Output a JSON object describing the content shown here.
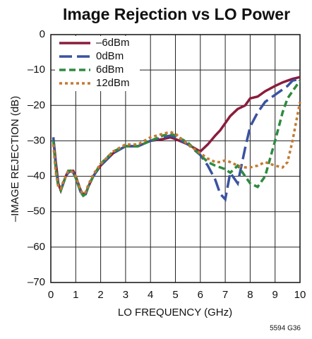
{
  "chart_data": {
    "type": "line",
    "title": "Image Rejection vs LO Power",
    "x_label": "LO FREQUENCY (GHz)",
    "y_label": "–IMAGE REJECTION (dB)",
    "footnote": "5594 G36",
    "x": [
      0.1,
      0.2,
      0.3,
      0.4,
      0.5,
      0.6,
      0.7,
      0.8,
      0.9,
      1.0,
      1.1,
      1.2,
      1.3,
      1.4,
      1.5,
      1.7,
      2.0,
      2.5,
      3.0,
      3.5,
      4.0,
      4.5,
      4.8,
      5.0,
      5.5,
      6.0,
      6.3,
      6.6,
      6.8,
      7.0,
      7.2,
      7.5,
      7.8,
      8.0,
      8.3,
      8.6,
      9.0,
      9.3,
      9.5,
      9.7,
      10.0
    ],
    "series": [
      {
        "name": "–6dBm",
        "color": "#8c1c3c",
        "dash": "solid",
        "values": [
          -29,
          -36,
          -42,
          -44,
          -42,
          -40,
          -38.5,
          -38.5,
          -38.5,
          -40,
          -42,
          -44,
          -45,
          -45,
          -43,
          -40,
          -37,
          -33.5,
          -31.5,
          -31.5,
          -30,
          -29.5,
          -29,
          -29.5,
          -31,
          -33,
          -31,
          -28.5,
          -27,
          -25,
          -23,
          -21,
          -20,
          -18,
          -17.5,
          -16,
          -14.5,
          -13.5,
          -13,
          -12.5,
          -12
        ]
      },
      {
        "name": "0dBm",
        "color": "#3a52a0",
        "dash": "long",
        "values": [
          -29,
          -37,
          -43,
          -44,
          -42,
          -40,
          -39,
          -38.5,
          -39,
          -40.5,
          -42.5,
          -44.5,
          -45.5,
          -45,
          -43,
          -40,
          -37,
          -33.5,
          -31.5,
          -31.5,
          -30,
          -29,
          -28.5,
          -29,
          -31,
          -34,
          -37,
          -41,
          -45,
          -46.5,
          -39,
          -42,
          -32,
          -26,
          -22,
          -19,
          -17,
          -15.5,
          -14.5,
          -13,
          -12.5
        ]
      },
      {
        "name": "6dBm",
        "color": "#2f8a3e",
        "dash": "medium",
        "values": [
          -30,
          -38,
          -43,
          -44,
          -42,
          -40,
          -38.5,
          -38.5,
          -39,
          -40.5,
          -42.5,
          -44.5,
          -45.5,
          -45,
          -43,
          -40,
          -36.5,
          -33,
          -31.5,
          -31.5,
          -30,
          -28.5,
          -28,
          -28.5,
          -30.5,
          -34,
          -36,
          -37,
          -37.5,
          -38,
          -39,
          -37,
          -40,
          -42,
          -43,
          -40,
          -30,
          -22,
          -18,
          -16,
          -13
        ]
      },
      {
        "name": "12dBm",
        "color": "#c47a34",
        "dash": "dot",
        "values": [
          -31,
          -39,
          -43,
          -43.5,
          -41.5,
          -40,
          -38.5,
          -38.5,
          -39,
          -40,
          -42,
          -44,
          -45,
          -44.5,
          -42.5,
          -39.5,
          -36.5,
          -33,
          -31,
          -31,
          -29,
          -28,
          -27.5,
          -28,
          -31,
          -33.5,
          -35,
          -36,
          -36,
          -35.5,
          -36,
          -37,
          -37.5,
          -37.5,
          -37,
          -36,
          -37,
          -37.5,
          -36,
          -30,
          -19
        ]
      }
    ],
    "xlim": [
      0,
      10
    ],
    "ylim": [
      -70,
      0
    ],
    "xticks": [
      0,
      1,
      2,
      3,
      4,
      5,
      6,
      7,
      8,
      9,
      10
    ],
    "yticks": [
      {
        "value": -70,
        "label": "–70"
      },
      {
        "value": -60,
        "label": "–60"
      },
      {
        "value": -50,
        "label": "–50"
      },
      {
        "value": -40,
        "label": "–40"
      },
      {
        "value": -30,
        "label": "–30"
      },
      {
        "value": -20,
        "label": "–20"
      },
      {
        "value": -10,
        "label": "–10"
      },
      0
    ],
    "grid": true,
    "legend": "upper-left"
  }
}
